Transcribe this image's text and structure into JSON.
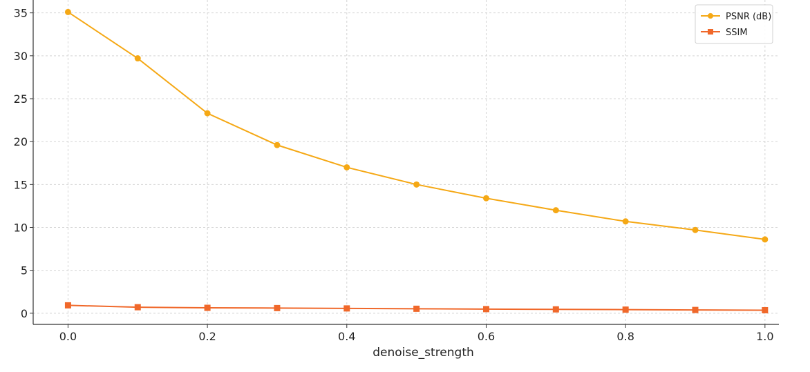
{
  "chart_data": {
    "type": "line",
    "title": "",
    "xlabel": "denoise_strength",
    "ylabel": "",
    "x": [
      0.0,
      0.1,
      0.2,
      0.3,
      0.4,
      0.5,
      0.6,
      0.7,
      0.8,
      0.9,
      1.0
    ],
    "xlim": [
      -0.05,
      1.02
    ],
    "ylim": [
      -1.3,
      36.5
    ],
    "xticks": [
      0.0,
      0.2,
      0.4,
      0.6,
      0.8,
      1.0
    ],
    "xtick_labels": [
      "0.0",
      "0.2",
      "0.4",
      "0.6",
      "0.8",
      "1.0"
    ],
    "yticks": [
      0,
      5,
      10,
      15,
      20,
      25,
      30,
      35
    ],
    "ytick_labels": [
      "0",
      "5",
      "10",
      "15",
      "20",
      "25",
      "30",
      "35"
    ],
    "grid": true,
    "legend_position": "top-right",
    "series": [
      {
        "name": "PSNR (dB)",
        "color": "#f5a815",
        "marker": "circle",
        "values": [
          35.1,
          29.7,
          23.3,
          19.6,
          17.0,
          15.0,
          13.4,
          12.0,
          10.7,
          9.7,
          8.6
        ]
      },
      {
        "name": "SSIM",
        "color": "#f0682a",
        "marker": "square",
        "values": [
          0.92,
          0.7,
          0.63,
          0.6,
          0.56,
          0.52,
          0.48,
          0.45,
          0.42,
          0.38,
          0.35
        ]
      }
    ]
  }
}
